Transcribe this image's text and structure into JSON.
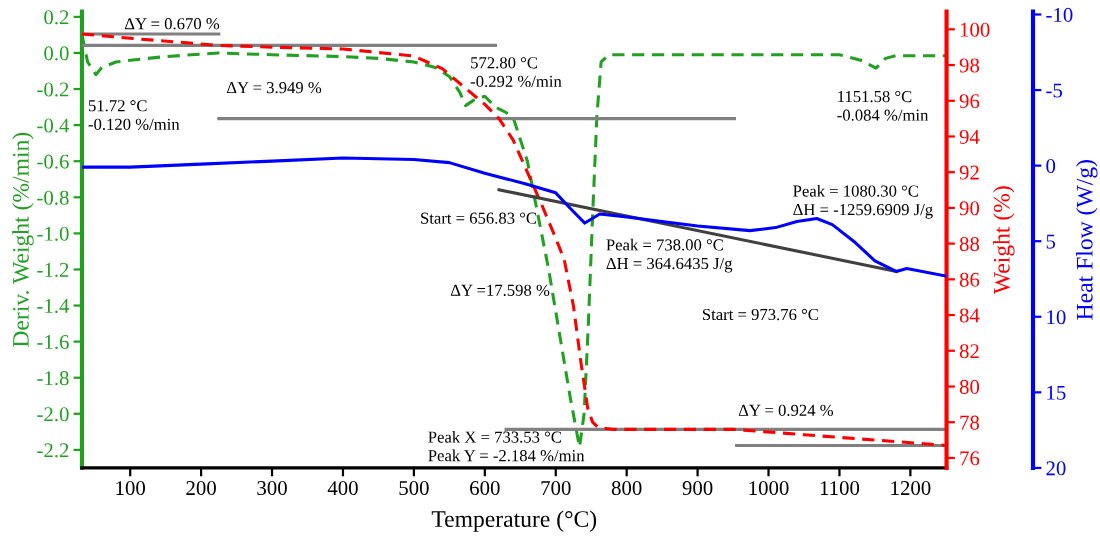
{
  "chart_data": {
    "type": "line",
    "xlabel": "Temperature (°C)",
    "ylabel": "Deriv. Weight (%/min)",
    "y2label": "Weight (%)",
    "y3label": "Heat Flow (W/g)",
    "xlim": [
      32,
      1251
    ],
    "xticks": [
      100,
      200,
      300,
      400,
      500,
      600,
      700,
      800,
      900,
      1000,
      1100,
      1200
    ],
    "ylim": [
      -2.3,
      0.23
    ],
    "yticks": [
      -2.2,
      {
        "value": -2.0,
        "label": "-2.0"
      },
      -1.8,
      -1.6,
      -1.4,
      -1.2,
      {
        "value": -1.0,
        "label": "-1.0"
      },
      -0.8,
      -0.6,
      -0.4,
      -0.2,
      {
        "value": 0,
        "label": "0.0"
      },
      0.2
    ],
    "y2lim": [
      75.44,
      101
    ],
    "y2ticks": [
      76,
      78,
      80,
      82,
      84,
      86,
      88,
      90,
      92,
      94,
      96,
      98,
      100
    ],
    "y3lim": [
      20.0,
      -10.2
    ],
    "y3ticks": [
      -10,
      -5,
      0,
      5,
      10,
      15,
      20
    ],
    "grid": false,
    "series": [
      {
        "axis": "y",
        "color": "#22a022",
        "line_style": "dashed",
        "x": [
          32,
          40,
          51.72,
          60,
          80,
          100,
          150,
          225,
          300,
          400,
          450,
          500,
          530,
          550,
          565,
          572.8,
          585,
          600,
          615,
          630,
          641,
          660,
          675,
          690,
          705,
          720,
          733.53,
          740,
          746,
          752,
          758,
          764,
          775,
          900,
          1000,
          1100,
          1130,
          1151.58,
          1165,
          1180,
          1250
        ],
        "values": [
          0.1,
          -0.05,
          -0.12,
          -0.08,
          -0.05,
          -0.04,
          -0.02,
          0.0,
          -0.01,
          -0.02,
          -0.03,
          -0.05,
          -0.08,
          -0.13,
          -0.22,
          -0.292,
          -0.26,
          -0.24,
          -0.3,
          -0.33,
          -0.37,
          -0.6,
          -0.9,
          -1.2,
          -1.55,
          -1.9,
          -2.184,
          -2.0,
          -1.5,
          -0.9,
          -0.35,
          -0.05,
          -0.01,
          -0.01,
          -0.01,
          -0.01,
          -0.04,
          -0.084,
          -0.03,
          -0.015,
          -0.015
        ]
      },
      {
        "axis": "y2",
        "color": "#ff0000",
        "line_style": "dashed",
        "x": [
          32,
          100,
          225,
          300,
          400,
          500,
          540,
          572.8,
          600,
          620,
          640,
          660,
          680,
          700,
          712,
          725,
          735,
          745,
          752,
          760,
          780,
          850,
          950,
          1050,
          1150,
          1250
        ],
        "values": [
          99.74,
          99.5,
          99.1,
          99.0,
          98.9,
          98.5,
          97.8,
          96.7,
          95.8,
          95.0,
          93.8,
          92.0,
          90.2,
          88.3,
          87.1,
          84.5,
          81.5,
          78.8,
          78.0,
          77.7,
          77.6,
          77.6,
          77.6,
          77.3,
          77.0,
          76.7
        ]
      },
      {
        "axis": "y3",
        "color": "#0000ff",
        "line_style": "solid",
        "x": [
          32,
          100,
          200,
          300,
          400,
          500,
          550,
          600,
          656.83,
          700,
          720,
          741,
          762,
          800,
          900,
          973.76,
          1010,
          1040,
          1068,
          1090,
          1120,
          1150,
          1180,
          1195,
          1250
        ],
        "values": [
          0.1,
          0.1,
          -0.1,
          -0.3,
          -0.5,
          -0.4,
          -0.2,
          0.5,
          1.2,
          1.8,
          2.8,
          3.8,
          3.2,
          3.4,
          4.0,
          4.3,
          4.1,
          3.7,
          3.5,
          3.9,
          5.0,
          6.3,
          7.0,
          6.8,
          7.3
        ]
      },
      {
        "axis": "y2",
        "color": "#808080",
        "line_style": "solid",
        "x": [
          32,
          225
        ],
        "values": [
          99.74,
          99.74
        ]
      },
      {
        "axis": "y2",
        "color": "#808080",
        "line_style": "solid",
        "x": [
          32,
          615
        ],
        "values": [
          99.1,
          99.1
        ]
      },
      {
        "axis": "y2",
        "color": "#808080",
        "line_style": "solid",
        "x": [
          225,
          952
        ],
        "values": [
          95.0,
          95.0
        ]
      },
      {
        "axis": "y2",
        "color": "#808080",
        "line_style": "solid",
        "x": [
          630,
          1250
        ],
        "values": [
          77.6,
          77.6
        ]
      },
      {
        "axis": "y2",
        "color": "#808080",
        "line_style": "solid",
        "x": [
          955,
          1250
        ],
        "values": [
          76.7,
          76.7
        ]
      },
      {
        "axis": "y3",
        "color": "#404040",
        "line_style": "solid",
        "x": [
          620,
          1180
        ],
        "values": [
          1.6,
          7.0
        ]
      }
    ],
    "annotations": [
      "ΔY = 0.670 %",
      "51.72 °C\n-0.120 %/min",
      "ΔY = 3.949 %",
      "572.80 °C\n-0.292 %/min",
      "1151.58 °C\n-0.084 %/min",
      "Start = 656.83 °C",
      "Peak = 1080.30 °C\nΔH = -1259.6909 J/g",
      "Peak = 738.00 °C\nΔH = 364.6435 J/g",
      "ΔY =17.598 %",
      "Start = 973.76 °C",
      "ΔY = 0.924 %",
      "Peak X = 733.53 °C\nPeak Y = -2.184 %/min"
    ]
  }
}
